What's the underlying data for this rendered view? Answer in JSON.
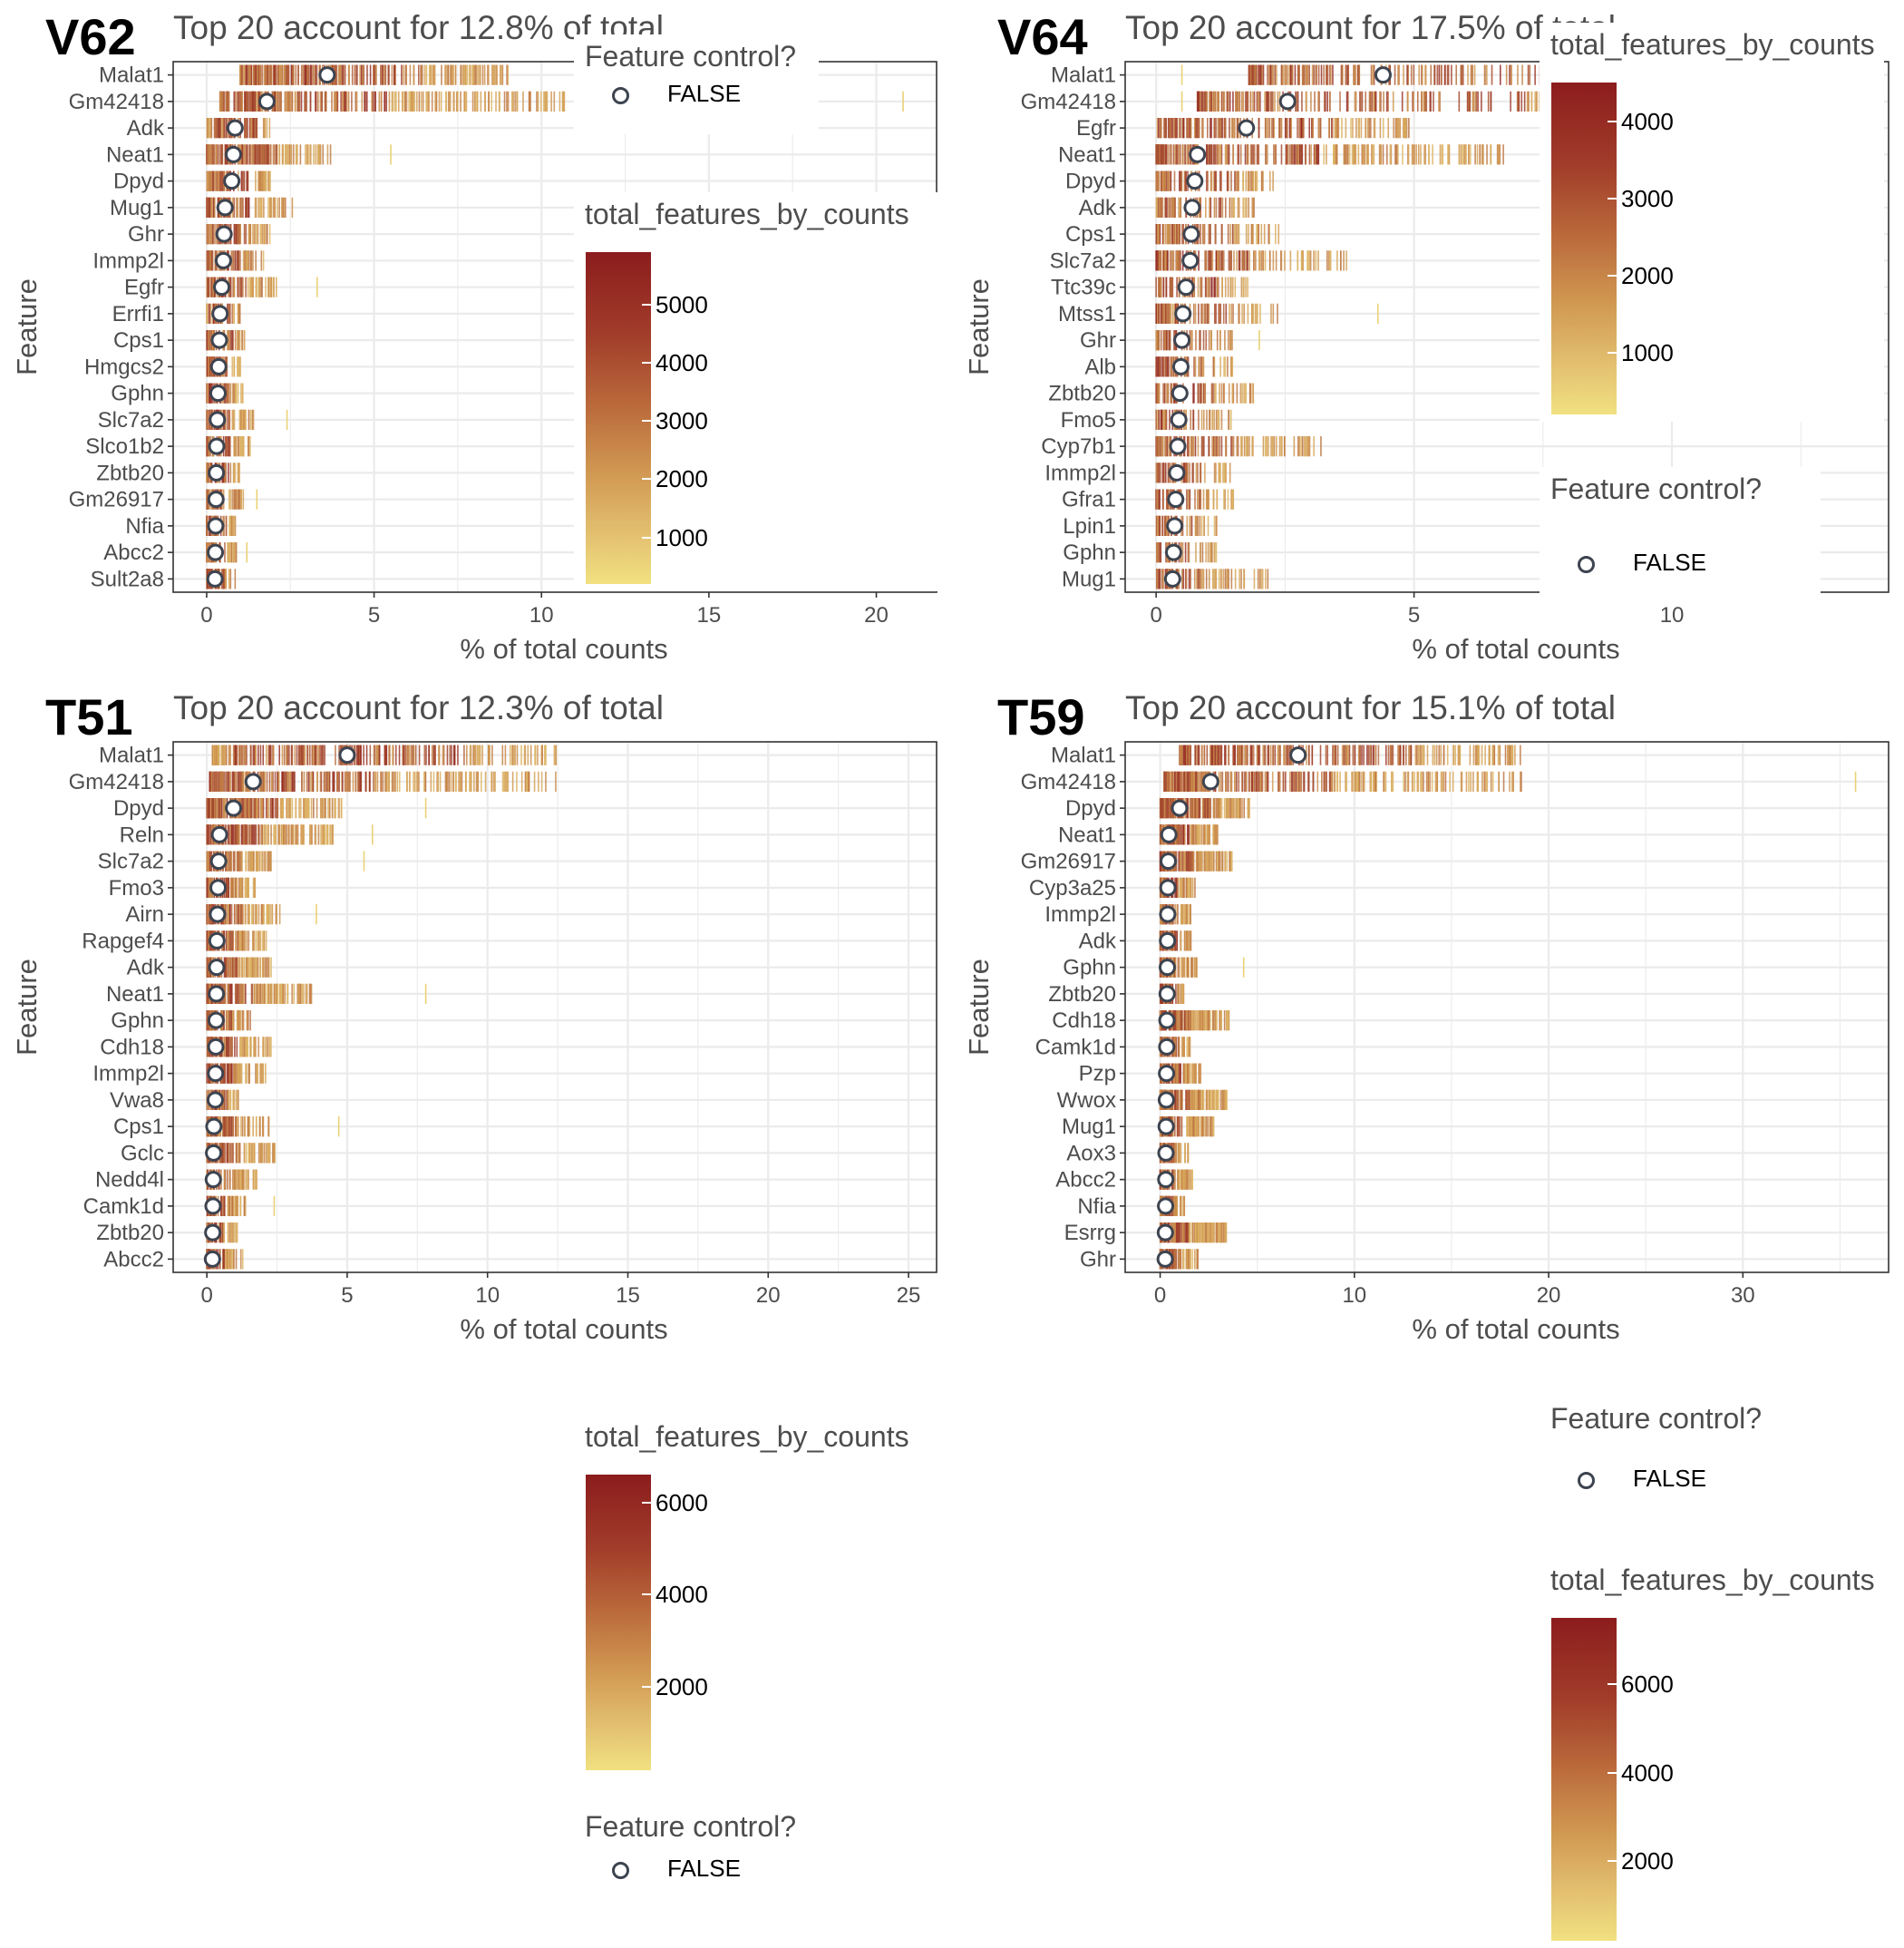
{
  "figure": {
    "x_axis_label": "% of total counts",
    "y_axis_label": "Feature",
    "point_color": "#3d4450",
    "low_color": "#f1e181",
    "high_color": "#8c1c1d"
  },
  "chart_data": [
    {
      "type": "scatter",
      "tag": "V62",
      "title": "Top 20 account for 12.8% of total",
      "xlabel": "% of total counts",
      "ylabel": "Feature",
      "xlim": [
        -1,
        21.8
      ],
      "xticks": [
        0,
        5,
        10,
        15,
        20
      ],
      "grid": true,
      "features": [
        "Malat1",
        "Gm42418",
        "Adk",
        "Neat1",
        "Dpyd",
        "Mug1",
        "Ghr",
        "Immp2l",
        "Egfr",
        "Errfi1",
        "Cps1",
        "Hmgcs2",
        "Gphn",
        "Slc7a2",
        "Slco1b2",
        "Zbtb20",
        "Gm26917",
        "Nfia",
        "Abcc2",
        "Sult2a8"
      ],
      "mean_pct": [
        3.6,
        1.8,
        0.85,
        0.8,
        0.75,
        0.55,
        0.52,
        0.5,
        0.45,
        0.4,
        0.38,
        0.36,
        0.34,
        0.32,
        0.3,
        0.29,
        0.28,
        0.27,
        0.26,
        0.25
      ],
      "range_pct": [
        [
          1.0,
          9.0
        ],
        [
          0.4,
          10.8
        ],
        [
          0.0,
          1.9
        ],
        [
          0.0,
          3.7
        ],
        [
          0.0,
          1.9
        ],
        [
          0.0,
          2.6
        ],
        [
          0.0,
          1.9
        ],
        [
          0.0,
          1.7
        ],
        [
          0.0,
          2.1
        ],
        [
          0.0,
          1.0
        ],
        [
          0.0,
          1.2
        ],
        [
          0.0,
          1.1
        ],
        [
          0.0,
          1.1
        ],
        [
          0.0,
          1.4
        ],
        [
          0.0,
          1.4
        ],
        [
          0.0,
          1.1
        ],
        [
          0.0,
          1.1
        ],
        [
          0.0,
          0.9
        ],
        [
          0.0,
          0.9
        ],
        [
          0.0,
          0.9
        ]
      ],
      "outliers_pct": [
        [],
        [
          20.8
        ],
        [],
        [
          5.5
        ],
        [],
        [],
        [],
        [],
        [
          3.3
        ],
        [],
        [],
        [],
        [],
        [
          2.4
        ],
        [],
        [],
        [
          1.5
        ],
        [],
        [
          1.2
        ],
        []
      ],
      "legend": {
        "control_title": "Feature control?",
        "control_label": "FALSE",
        "color_title": "total_features_by_counts",
        "color_ticks": [
          1000,
          2000,
          3000,
          4000,
          5000
        ],
        "color_range": [
          200,
          5900
        ],
        "position": "right"
      }
    },
    {
      "type": "scatter",
      "tag": "V64",
      "title": "Top 20 account for 17.5% of total",
      "xlabel": "% of total counts",
      "ylabel": "Feature",
      "xlim": [
        -0.6,
        14.2
      ],
      "xticks": [
        0,
        5,
        10
      ],
      "grid": true,
      "features": [
        "Malat1",
        "Gm42418",
        "Egfr",
        "Neat1",
        "Dpyd",
        "Adk",
        "Cps1",
        "Slc7a2",
        "Ttc39c",
        "Mtss1",
        "Ghr",
        "Alb",
        "Zbtb20",
        "Fmo5",
        "Cyp7b1",
        "Immp2l",
        "Gfra1",
        "Lpin1",
        "Gphn",
        "Mug1"
      ],
      "mean_pct": [
        4.4,
        2.55,
        1.75,
        0.8,
        0.75,
        0.7,
        0.68,
        0.66,
        0.58,
        0.52,
        0.5,
        0.48,
        0.46,
        0.44,
        0.42,
        0.4,
        0.38,
        0.36,
        0.34,
        0.32
      ],
      "range_pct": [
        [
          1.8,
          14.0
        ],
        [
          0.8,
          14.0
        ],
        [
          0.0,
          4.9
        ],
        [
          0.0,
          6.8
        ],
        [
          0.0,
          2.3
        ],
        [
          0.0,
          1.9
        ],
        [
          0.0,
          2.4
        ],
        [
          0.0,
          3.7
        ],
        [
          0.0,
          1.9
        ],
        [
          0.0,
          2.4
        ],
        [
          0.0,
          1.5
        ],
        [
          0.0,
          1.5
        ],
        [
          0.0,
          1.9
        ],
        [
          0.0,
          1.6
        ],
        [
          0.0,
          3.2
        ],
        [
          0.0,
          1.5
        ],
        [
          0.0,
          1.5
        ],
        [
          0.0,
          1.2
        ],
        [
          0.0,
          1.2
        ],
        [
          0.0,
          2.2
        ]
      ],
      "outliers_pct": [
        [
          0.5
        ],
        [
          0.5
        ],
        [],
        [],
        [],
        [],
        [],
        [],
        [],
        [
          4.3
        ],
        [
          2.0
        ],
        [],
        [],
        [],
        [],
        [],
        [],
        [],
        [],
        []
      ],
      "legend": {
        "control_title": "Feature control?",
        "control_label": "FALSE",
        "color_title": "total_features_by_counts",
        "color_ticks": [
          1000,
          2000,
          3000,
          4000
        ],
        "color_range": [
          200,
          4500
        ],
        "position": "right"
      }
    },
    {
      "type": "scatter",
      "tag": "T51",
      "title": "Top 20 account for 12.3% of total",
      "xlabel": "% of total counts",
      "ylabel": "Feature",
      "xlim": [
        -1.2,
        26.0
      ],
      "xticks": [
        0,
        5,
        10,
        15,
        20,
        25
      ],
      "grid": true,
      "features": [
        "Malat1",
        "Gm42418",
        "Dpyd",
        "Reln",
        "Slc7a2",
        "Fmo3",
        "Airn",
        "Rapgef4",
        "Adk",
        "Neat1",
        "Gphn",
        "Cdh18",
        "Immp2l",
        "Vwa8",
        "Cps1",
        "Gclc",
        "Nedd4l",
        "Camk1d",
        "Zbtb20",
        "Abcc2"
      ],
      "mean_pct": [
        5.0,
        1.65,
        0.95,
        0.45,
        0.42,
        0.4,
        0.38,
        0.36,
        0.35,
        0.34,
        0.33,
        0.32,
        0.31,
        0.3,
        0.25,
        0.24,
        0.23,
        0.22,
        0.21,
        0.2
      ],
      "range_pct": [
        [
          0.2,
          12.5
        ],
        [
          0.1,
          12.5
        ],
        [
          0.0,
          4.8
        ],
        [
          0.0,
          4.5
        ],
        [
          0.0,
          2.3
        ],
        [
          0.0,
          1.8
        ],
        [
          0.0,
          2.6
        ],
        [
          0.0,
          2.2
        ],
        [
          0.0,
          2.4
        ],
        [
          0.0,
          3.8
        ],
        [
          0.0,
          1.6
        ],
        [
          0.0,
          2.4
        ],
        [
          0.0,
          2.1
        ],
        [
          0.0,
          1.2
        ],
        [
          0.0,
          2.3
        ],
        [
          0.0,
          2.5
        ],
        [
          0.0,
          1.8
        ],
        [
          0.0,
          1.5
        ],
        [
          0.0,
          1.1
        ],
        [
          0.0,
          1.3
        ]
      ],
      "outliers_pct": [
        [],
        [],
        [
          7.8
        ],
        [
          5.9
        ],
        [
          5.6
        ],
        [],
        [
          3.9
        ],
        [],
        [],
        [
          7.8
        ],
        [],
        [],
        [],
        [],
        [
          4.7
        ],
        [],
        [],
        [
          2.4
        ],
        [],
        []
      ],
      "legend": {
        "control_title": "Feature control?",
        "control_label": "FALSE",
        "color_title": "total_features_by_counts",
        "color_ticks": [
          2000,
          4000,
          6000
        ],
        "color_range": [
          200,
          6600
        ],
        "position": "right"
      }
    },
    {
      "type": "scatter",
      "tag": "T59",
      "title": "Top 20 account for 15.1% of total",
      "xlabel": "% of total counts",
      "ylabel": "Feature",
      "xlim": [
        -1.8,
        37.5
      ],
      "xticks": [
        0,
        10,
        20,
        30
      ],
      "grid": true,
      "features": [
        "Malat1",
        "Gm42418",
        "Dpyd",
        "Neat1",
        "Gm26917",
        "Cyp3a25",
        "Immp2l",
        "Adk",
        "Gphn",
        "Zbtb20",
        "Cdh18",
        "Camk1d",
        "Pzp",
        "Wwox",
        "Mug1",
        "Aox3",
        "Abcc2",
        "Nfia",
        "Esrrg",
        "Ghr"
      ],
      "mean_pct": [
        7.1,
        2.6,
        1.0,
        0.45,
        0.42,
        0.4,
        0.39,
        0.38,
        0.37,
        0.36,
        0.35,
        0.34,
        0.33,
        0.32,
        0.31,
        0.3,
        0.29,
        0.28,
        0.27,
        0.26
      ],
      "range_pct": [
        [
          1.0,
          18.6
        ],
        [
          0.2,
          18.6
        ],
        [
          0.0,
          4.6
        ],
        [
          0.0,
          3.0
        ],
        [
          0.0,
          3.7
        ],
        [
          0.0,
          1.8
        ],
        [
          0.0,
          1.6
        ],
        [
          0.0,
          1.6
        ],
        [
          0.0,
          1.9
        ],
        [
          0.0,
          1.3
        ],
        [
          0.0,
          3.6
        ],
        [
          0.0,
          1.6
        ],
        [
          0.0,
          2.1
        ],
        [
          0.0,
          3.5
        ],
        [
          0.0,
          2.8
        ],
        [
          0.0,
          1.5
        ],
        [
          0.0,
          1.8
        ],
        [
          0.0,
          1.3
        ],
        [
          0.0,
          3.5
        ],
        [
          0.0,
          2.0
        ]
      ],
      "outliers_pct": [
        [],
        [
          35.8
        ],
        [],
        [],
        [],
        [],
        [],
        [],
        [
          4.3
        ],
        [],
        [],
        [],
        [],
        [],
        [],
        [],
        [],
        [],
        [],
        []
      ],
      "legend": {
        "control_title": "Feature control?",
        "control_label": "FALSE",
        "color_title": "total_features_by_counts",
        "color_ticks": [
          2000,
          4000,
          6000
        ],
        "color_range": [
          200,
          7500
        ],
        "position": "right"
      }
    }
  ]
}
